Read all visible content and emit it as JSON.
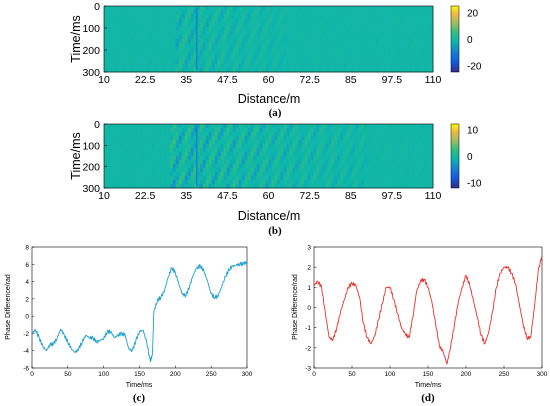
{
  "chart_data": [
    {
      "panel": "(a)",
      "type": "heatmap",
      "xlabel": "Distance/m",
      "ylabel": "Time/ms",
      "xlim": [
        10,
        110
      ],
      "ylim": [
        0,
        300
      ],
      "xticks": [
        "10",
        "22.5",
        "35",
        "47.5",
        "60",
        "72.5",
        "85",
        "97.5",
        "110"
      ],
      "yticks": [
        "0",
        "100",
        "200",
        "300"
      ],
      "colorbar": {
        "ticks": [
          "20",
          "0",
          "-20"
        ],
        "range": [
          -25,
          25
        ]
      },
      "features": {
        "disturbance_x_range": [
          32,
          65
        ],
        "strongest_x": 38,
        "colormap": "parula"
      },
      "caption": "(a)"
    },
    {
      "panel": "(b)",
      "type": "heatmap",
      "xlabel": "Distance/m",
      "ylabel": "Time/ms",
      "xlim": [
        10,
        110
      ],
      "ylim": [
        0,
        300
      ],
      "xticks": [
        "10",
        "22.5",
        "35",
        "47.5",
        "60",
        "72.5",
        "85",
        "97.5",
        "110"
      ],
      "yticks": [
        "0",
        "100",
        "200",
        "300"
      ],
      "colorbar": {
        "ticks": [
          "10",
          "0",
          "-10"
        ],
        "range": [
          -12,
          12
        ]
      },
      "features": {
        "disturbance_x_range": [
          30,
          90
        ],
        "strongest_x": 38,
        "colormap": "parula"
      },
      "caption": "(b)"
    },
    {
      "panel": "(c)",
      "type": "line",
      "xlabel": "Time/ms",
      "ylabel": "Phase Difference/rad",
      "xlim": [
        0,
        300
      ],
      "ylim": [
        -6,
        8
      ],
      "xticks": [
        "0",
        "50",
        "100",
        "150",
        "200",
        "250",
        "300"
      ],
      "yticks": [
        "8",
        "6",
        "4",
        "2",
        "0",
        "-2",
        "-4",
        "-6"
      ],
      "color": "#1f9fd0",
      "series": [
        {
          "x": [
            0,
            5,
            10,
            15,
            20,
            25,
            30,
            35,
            40,
            45,
            50,
            55,
            60,
            65,
            70,
            75,
            80,
            85,
            90,
            95,
            100,
            105,
            110,
            115,
            120,
            125,
            130,
            135,
            140,
            145,
            150,
            155,
            160,
            165,
            168,
            170,
            175,
            180,
            185,
            190,
            195,
            200,
            205,
            210,
            215,
            220,
            225,
            230,
            235,
            240,
            245,
            250,
            255,
            260,
            265,
            270,
            275,
            280,
            285,
            290,
            295,
            300
          ],
          "values": [
            -2.0,
            -1.6,
            -2.5,
            -3.5,
            -4.0,
            -3.3,
            -3.2,
            -2.6,
            -1.5,
            -2.2,
            -3.0,
            -3.8,
            -4.2,
            -3.8,
            -3.0,
            -2.2,
            -2.5,
            -2.5,
            -3.0,
            -2.8,
            -2.6,
            -1.8,
            -1.8,
            -2.5,
            -2.2,
            -2.0,
            -2.2,
            -3.8,
            -4.0,
            -2.8,
            -1.8,
            -1.6,
            -3.0,
            -5.2,
            -4.5,
            0.5,
            1.8,
            2.2,
            3.0,
            4.5,
            5.6,
            5.0,
            3.7,
            2.5,
            2.4,
            3.5,
            4.8,
            5.6,
            5.8,
            5.2,
            4.0,
            2.6,
            2.1,
            2.4,
            3.5,
            4.6,
            5.4,
            5.8,
            5.9,
            6.0,
            6.1,
            6.2
          ]
        }
      ],
      "caption": "(c)"
    },
    {
      "panel": "(d)",
      "type": "line",
      "xlabel": "Time/ms",
      "ylabel": "Phase Difference/rad",
      "xlim": [
        0,
        300
      ],
      "ylim": [
        -3,
        3
      ],
      "xticks": [
        "0",
        "50",
        "100",
        "150",
        "200",
        "250",
        "300"
      ],
      "yticks": [
        "3",
        "2",
        "1",
        "0",
        "-1",
        "-2",
        "-3"
      ],
      "color": "#e8322f",
      "series": [
        {
          "x": [
            0,
            5,
            10,
            15,
            20,
            25,
            30,
            35,
            40,
            45,
            50,
            55,
            60,
            65,
            70,
            75,
            80,
            85,
            90,
            95,
            100,
            105,
            110,
            115,
            120,
            125,
            130,
            135,
            140,
            145,
            150,
            155,
            160,
            165,
            170,
            175,
            180,
            185,
            190,
            195,
            200,
            205,
            210,
            215,
            220,
            225,
            230,
            235,
            240,
            245,
            250,
            255,
            260,
            265,
            270,
            275,
            280,
            285,
            290,
            295,
            300
          ],
          "values": [
            1.1,
            1.3,
            1.0,
            -0.3,
            -1.5,
            -1.6,
            -1.0,
            -0.2,
            0.4,
            1.0,
            1.2,
            1.1,
            0.5,
            -0.8,
            -1.5,
            -1.8,
            -1.4,
            -0.6,
            0.2,
            1.0,
            1.0,
            0.4,
            -0.3,
            -1.0,
            -1.3,
            -1.5,
            -0.5,
            0.8,
            1.3,
            1.4,
            1.0,
            0.3,
            -0.8,
            -1.9,
            -2.2,
            -2.8,
            -1.9,
            -0.8,
            0.3,
            1.0,
            1.6,
            1.1,
            0.3,
            -0.5,
            -1.4,
            -1.8,
            -1.2,
            -0.2,
            1.0,
            1.7,
            2.0,
            2.0,
            1.7,
            1.2,
            0.2,
            -0.8,
            -1.5,
            -1.5,
            0.0,
            1.8,
            2.6
          ]
        }
      ],
      "caption": "(d)"
    }
  ]
}
